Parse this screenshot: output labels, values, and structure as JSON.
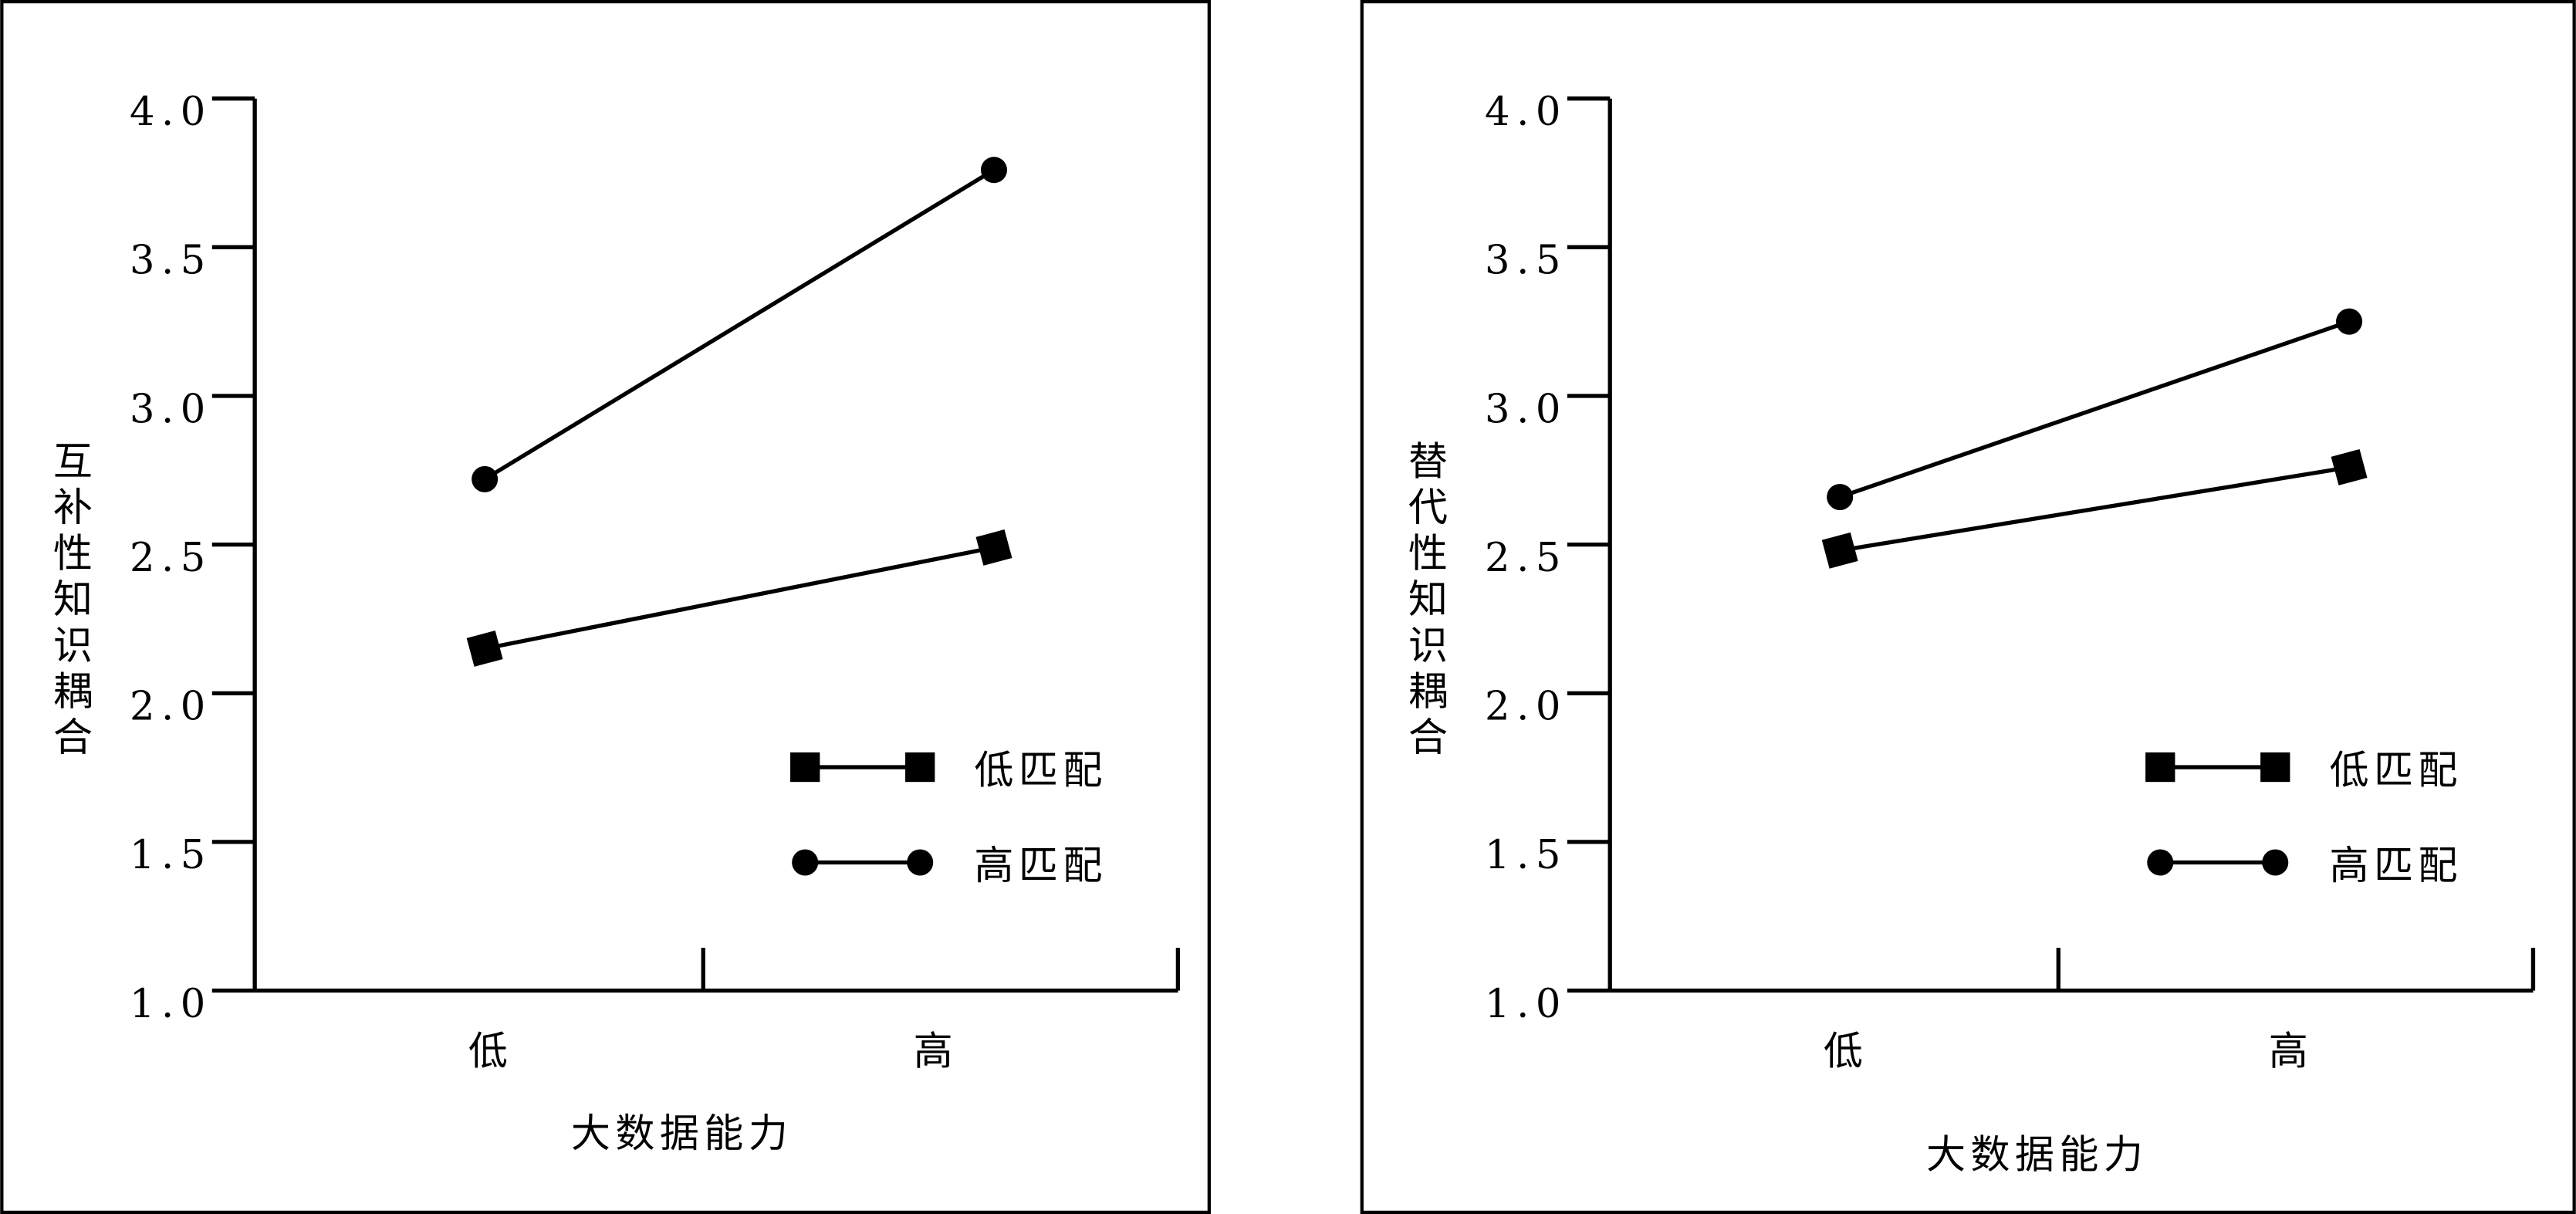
{
  "chart_data": [
    {
      "type": "line",
      "x_label": "大数据能力",
      "y_label": "互补性知识耦合",
      "categories": [
        "低",
        "高"
      ],
      "series": [
        {
          "name": "低匹配",
          "color": "#000000",
          "marker": "square",
          "values": [
            2.15,
            2.49
          ]
        },
        {
          "name": "高匹配",
          "color": "#000000",
          "marker": "circle",
          "values": [
            2.72,
            3.76
          ]
        }
      ],
      "ylim": [
        1,
        4
      ],
      "yticks": [
        {
          "value": 1,
          "label": "1.0"
        },
        1.5,
        {
          "value": 2,
          "label": "2.0"
        },
        2.5,
        {
          "value": 3,
          "label": "3.0"
        },
        3.5,
        {
          "value": 4,
          "label": "4.0"
        }
      ]
    },
    {
      "type": "line",
      "x_label": "大数据能力",
      "y_label": "替代性知识耦合",
      "categories": [
        "低",
        "高"
      ],
      "series": [
        {
          "name": "低匹配",
          "color": "#000000",
          "marker": "square",
          "values": [
            2.48,
            2.76
          ]
        },
        {
          "name": "高匹配",
          "color": "#000000",
          "marker": "circle",
          "values": [
            2.66,
            3.25
          ]
        }
      ],
      "ylim": [
        1,
        4
      ],
      "yticks": [
        {
          "value": 1,
          "label": "1.0"
        },
        1.5,
        {
          "value": 2,
          "label": "2.0"
        },
        2.5,
        {
          "value": 3,
          "label": "3.0"
        },
        3.5,
        {
          "value": 4,
          "label": "4.0"
        }
      ]
    }
  ]
}
